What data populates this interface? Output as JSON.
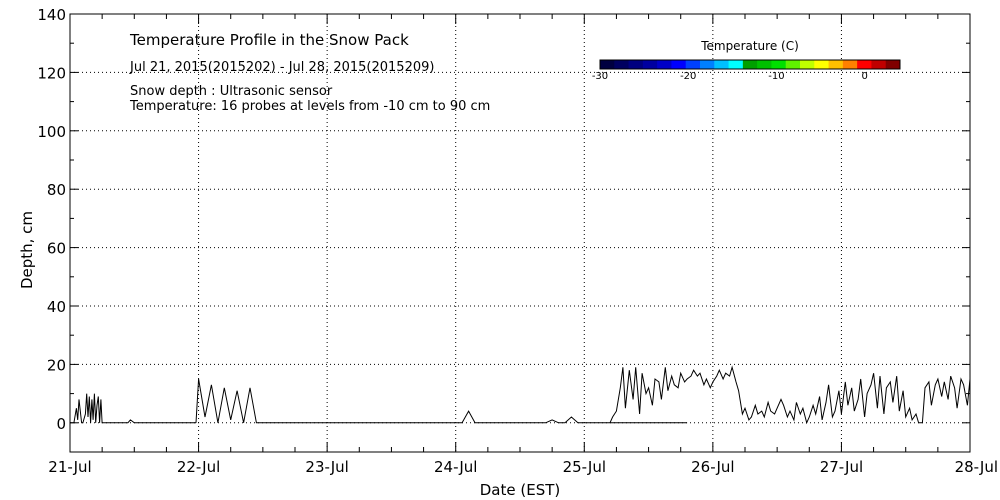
{
  "chart_data": {
    "type": "line",
    "title": "Temperature Profile in the Snow Pack",
    "date_range": "Jul 21, 2015(2015202) - Jul 28, 2015(2015209)",
    "note_depth": "Snow depth : Ultrasonic sensor",
    "note_temp": "Temperature: 16 probes at levels from -10 cm to 90 cm",
    "xlabel": "Date (EST)",
    "ylabel": "Depth, cm",
    "x_ticks": [
      "21-Jul",
      "22-Jul",
      "23-Jul",
      "24-Jul",
      "25-Jul",
      "26-Jul",
      "27-Jul",
      "28-Jul"
    ],
    "xlim": [
      0,
      7
    ],
    "ylim": [
      -10,
      140
    ],
    "y_ticks": [
      0,
      20,
      40,
      60,
      80,
      100,
      120,
      140
    ],
    "grid": true,
    "colorbar": {
      "title": "Temperature (C)",
      "tick_values": [
        -30,
        -20,
        -10,
        0
      ],
      "tick_labels": [
        "-30",
        "-20",
        "-10",
        "0"
      ],
      "range": [
        -30,
        4
      ],
      "colors": [
        "#000040",
        "#000060",
        "#000080",
        "#0000a0",
        "#0000c8",
        "#0000ff",
        "#0040ff",
        "#0080ff",
        "#00c0ff",
        "#00ffff",
        "#00a000",
        "#00c000",
        "#00e000",
        "#60f000",
        "#c0ff00",
        "#ffff00",
        "#ffc000",
        "#ff8000",
        "#ff0000",
        "#c00000",
        "#800000"
      ]
    },
    "series": [
      {
        "name": "",
        "segments": [
          {
            "x": [
              0.0,
              0.03,
              0.05,
              0.06,
              0.07,
              0.09,
              0.1,
              0.12,
              0.13,
              0.14,
              0.15,
              0.16,
              0.17,
              0.18,
              0.19,
              0.2,
              0.21,
              0.22,
              0.23,
              0.24,
              0.25,
              0.27,
              0.28,
              0.3,
              0.35,
              0.4,
              0.45,
              0.47,
              0.5,
              0.6,
              0.7,
              0.8,
              0.9,
              0.98
            ],
            "y": [
              0,
              0,
              5,
              1,
              8,
              0,
              0,
              3,
              10,
              2,
              9,
              0,
              8,
              1,
              10,
              0,
              6,
              9,
              0,
              8,
              0,
              0,
              0,
              0,
              0,
              0,
              0,
              1,
              0,
              0,
              0,
              0,
              0,
              0
            ]
          },
          {
            "x": [
              0.98,
              1.0,
              1.05,
              1.1,
              1.15,
              1.2,
              1.25,
              1.3,
              1.35,
              1.4,
              1.45,
              1.5,
              1.55,
              1.6,
              1.65,
              1.7,
              1.8,
              1.85,
              1.88
            ],
            "y": [
              0,
              15,
              2,
              13,
              0,
              12,
              1,
              11,
              0,
              12,
              0,
              0,
              0,
              0,
              0,
              0,
              0,
              0,
              0
            ]
          },
          {
            "x": [
              1.88,
              2.0,
              2.1,
              2.2,
              2.3,
              2.4,
              2.5,
              2.6,
              2.7,
              2.8,
              2.9,
              3.0,
              3.05,
              3.1,
              3.15,
              3.2,
              3.25,
              3.3,
              3.35,
              3.4,
              3.45,
              3.5,
              3.55,
              3.6,
              3.65,
              3.7,
              3.75,
              3.8,
              3.85,
              3.9,
              3.95,
              4.0,
              4.05,
              4.1,
              4.15,
              4.2,
              4.25,
              4.3,
              4.35,
              4.4,
              4.45,
              4.5,
              4.55,
              4.6,
              4.65,
              4.7,
              4.75,
              4.8
            ],
            "y": [
              0,
              0,
              0,
              0,
              0,
              0,
              0,
              0,
              0,
              0,
              0,
              0,
              0,
              4,
              0,
              0,
              0,
              0,
              0,
              0,
              0,
              0,
              0,
              0,
              0,
              0,
              1,
              0,
              0,
              2,
              0,
              0,
              0,
              0,
              0,
              0,
              0,
              0,
              0,
              0,
              0,
              0,
              0,
              0,
              0,
              0,
              0,
              0
            ]
          }
        ]
      },
      {
        "name": "",
        "segments": [
          {
            "x": [
              4.2,
              4.22,
              4.25,
              4.28,
              4.3,
              4.32,
              4.35,
              4.38,
              4.4,
              4.43,
              4.45,
              4.48,
              4.5,
              4.53,
              4.55,
              4.58,
              4.6,
              4.63,
              4.65,
              4.68,
              4.7,
              4.73,
              4.75,
              4.78,
              4.8,
              4.83,
              4.85,
              4.88,
              4.9,
              4.93,
              4.95,
              4.98,
              5.0,
              5.03,
              5.05,
              5.08,
              5.1,
              5.13,
              5.15,
              5.18,
              5.2,
              5.23,
              5.25,
              5.28,
              5.3,
              5.33,
              5.35,
              5.38,
              5.4,
              5.43,
              5.45,
              5.48,
              5.5,
              5.53,
              5.55,
              5.58,
              5.6,
              5.63,
              5.65,
              5.68,
              5.7,
              5.73,
              5.75,
              5.78,
              5.8,
              5.83,
              5.85,
              5.88,
              5.9,
              5.93,
              5.95,
              5.98,
              6.0,
              6.03,
              6.05,
              6.08,
              6.1,
              6.13,
              6.15,
              6.18,
              6.2,
              6.23,
              6.25,
              6.28,
              6.3,
              6.33,
              6.35,
              6.38,
              6.4,
              6.43,
              6.45,
              6.48,
              6.5,
              6.53,
              6.55,
              6.58,
              6.6,
              6.63,
              6.65,
              6.68,
              6.7,
              6.73,
              6.75,
              6.78,
              6.8,
              6.83,
              6.85,
              6.88,
              6.9,
              6.93,
              6.95,
              6.98,
              7.0
            ],
            "y": [
              0,
              2,
              4,
              12,
              19,
              5,
              18,
              8,
              19,
              3,
              17,
              10,
              12,
              6,
              15,
              14,
              8,
              19,
              11,
              16,
              13,
              12,
              17,
              14,
              15,
              16,
              18,
              16,
              17,
              13,
              15,
              12,
              14,
              16,
              18,
              15,
              17,
              16,
              19,
              14,
              11,
              3,
              5,
              1,
              2,
              6,
              3,
              4,
              2,
              7,
              4,
              3,
              5,
              8,
              6,
              2,
              4,
              1,
              7,
              3,
              5,
              0,
              2,
              6,
              3,
              9,
              1,
              7,
              13,
              2,
              4,
              11,
              3,
              14,
              6,
              12,
              4,
              8,
              15,
              2,
              10,
              13,
              17,
              5,
              16,
              3,
              12,
              14,
              7,
              16,
              4,
              11,
              2,
              5,
              1,
              3,
              0,
              0,
              12,
              14,
              6,
              13,
              15,
              9,
              14,
              8,
              16,
              12,
              5,
              15,
              13,
              6,
              15
            ]
          }
        ]
      }
    ]
  }
}
